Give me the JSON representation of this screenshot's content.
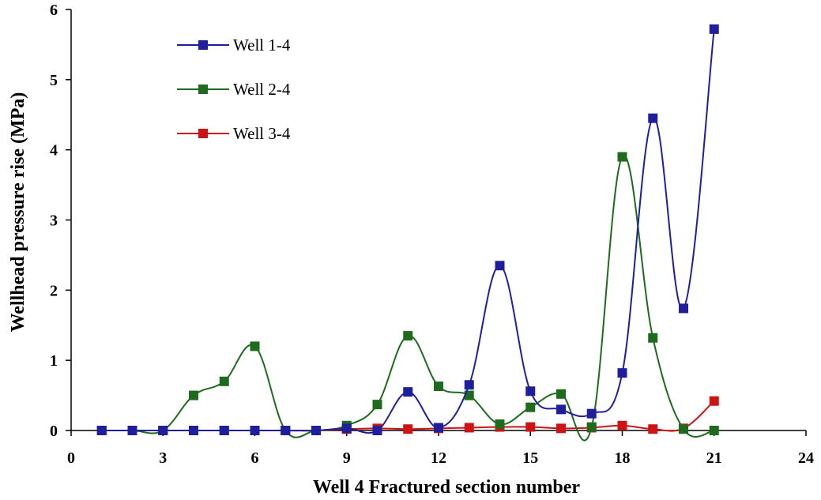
{
  "chart_data": {
    "type": "line",
    "xlabel": "Well 4 Fractured section number",
    "ylabel": "Wellhead pressure rise  (MPa)",
    "xlim": [
      0,
      24
    ],
    "ylim": [
      0,
      6
    ],
    "xticks": [
      0,
      3,
      6,
      9,
      12,
      15,
      18,
      21,
      24
    ],
    "yticks": [
      0,
      1,
      2,
      3,
      4,
      5,
      6
    ],
    "grid": false,
    "legend_position": "top-left",
    "series": [
      {
        "name": "Well 1-4",
        "color": "#1f1f9e",
        "x": [
          1,
          2,
          3,
          4,
          5,
          6,
          7,
          8,
          9,
          10,
          11,
          12,
          13,
          14,
          15,
          16,
          17,
          18,
          19,
          20,
          21
        ],
        "y": [
          0,
          0,
          0,
          0,
          0,
          0,
          0,
          0,
          0.03,
          0,
          0.55,
          0.04,
          0.65,
          2.35,
          0.56,
          0.3,
          0.24,
          0.82,
          4.45,
          1.74,
          5.72
        ]
      },
      {
        "name": "Well 2-4",
        "color": "#1e6b1e",
        "x": [
          1,
          2,
          3,
          4,
          5,
          6,
          7,
          8,
          9,
          10,
          11,
          12,
          13,
          14,
          15,
          16,
          17,
          18,
          19,
          20,
          21
        ],
        "y": [
          0,
          0,
          0,
          0.5,
          0.7,
          1.2,
          0,
          0,
          0.07,
          0.37,
          1.35,
          0.63,
          0.5,
          0.09,
          0.33,
          0.52,
          0.05,
          3.9,
          1.32,
          0.02,
          0
        ]
      },
      {
        "name": "Well 3-4",
        "color": "#cc1414",
        "x": [
          1,
          2,
          3,
          4,
          5,
          6,
          7,
          8,
          9,
          10,
          11,
          12,
          13,
          14,
          15,
          16,
          17,
          18,
          19,
          20,
          21
        ],
        "y": [
          0,
          0,
          0,
          0,
          0,
          0,
          0,
          0,
          0.02,
          0.03,
          0.02,
          0.03,
          0.04,
          0.05,
          0.05,
          0.03,
          0.04,
          0.07,
          0.02,
          0.03,
          0.42
        ]
      }
    ]
  }
}
